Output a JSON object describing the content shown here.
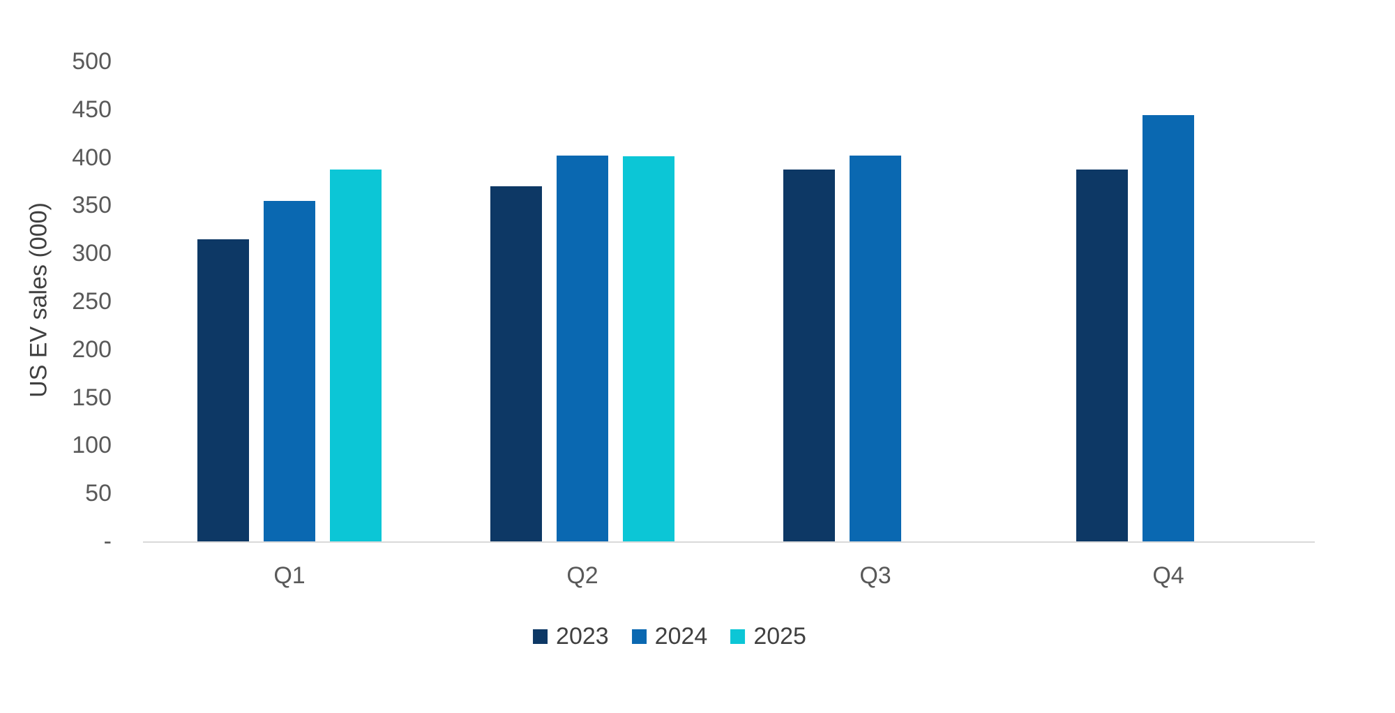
{
  "chart_data": {
    "type": "bar",
    "title": "",
    "xlabel": "",
    "ylabel": "US EV sales (000)",
    "categories": [
      "Q1",
      "Q2",
      "Q3",
      "Q4"
    ],
    "series": [
      {
        "name": "2023",
        "color": "#0D3865",
        "values": [
          315,
          370,
          387,
          387
        ]
      },
      {
        "name": "2024",
        "color": "#0A68B1",
        "values": [
          355,
          402,
          402,
          444
        ]
      },
      {
        "name": "2025",
        "color": "#0CC6D6",
        "values": [
          387,
          401,
          null,
          null
        ]
      }
    ],
    "ylim": [
      0,
      500
    ],
    "ytick_step": 50,
    "ytick_labels": [
      "-",
      "50",
      "100",
      "150",
      "200",
      "250",
      "300",
      "350",
      "400",
      "450",
      "500"
    ],
    "grid": false,
    "legend_position": "bottom"
  },
  "colors": {
    "axis_line": "#d9d9d9",
    "tick_text": "#595959",
    "category_text": "#595959",
    "legend_text": "#404040",
    "axis_title_text": "#404040",
    "background": "#ffffff"
  }
}
